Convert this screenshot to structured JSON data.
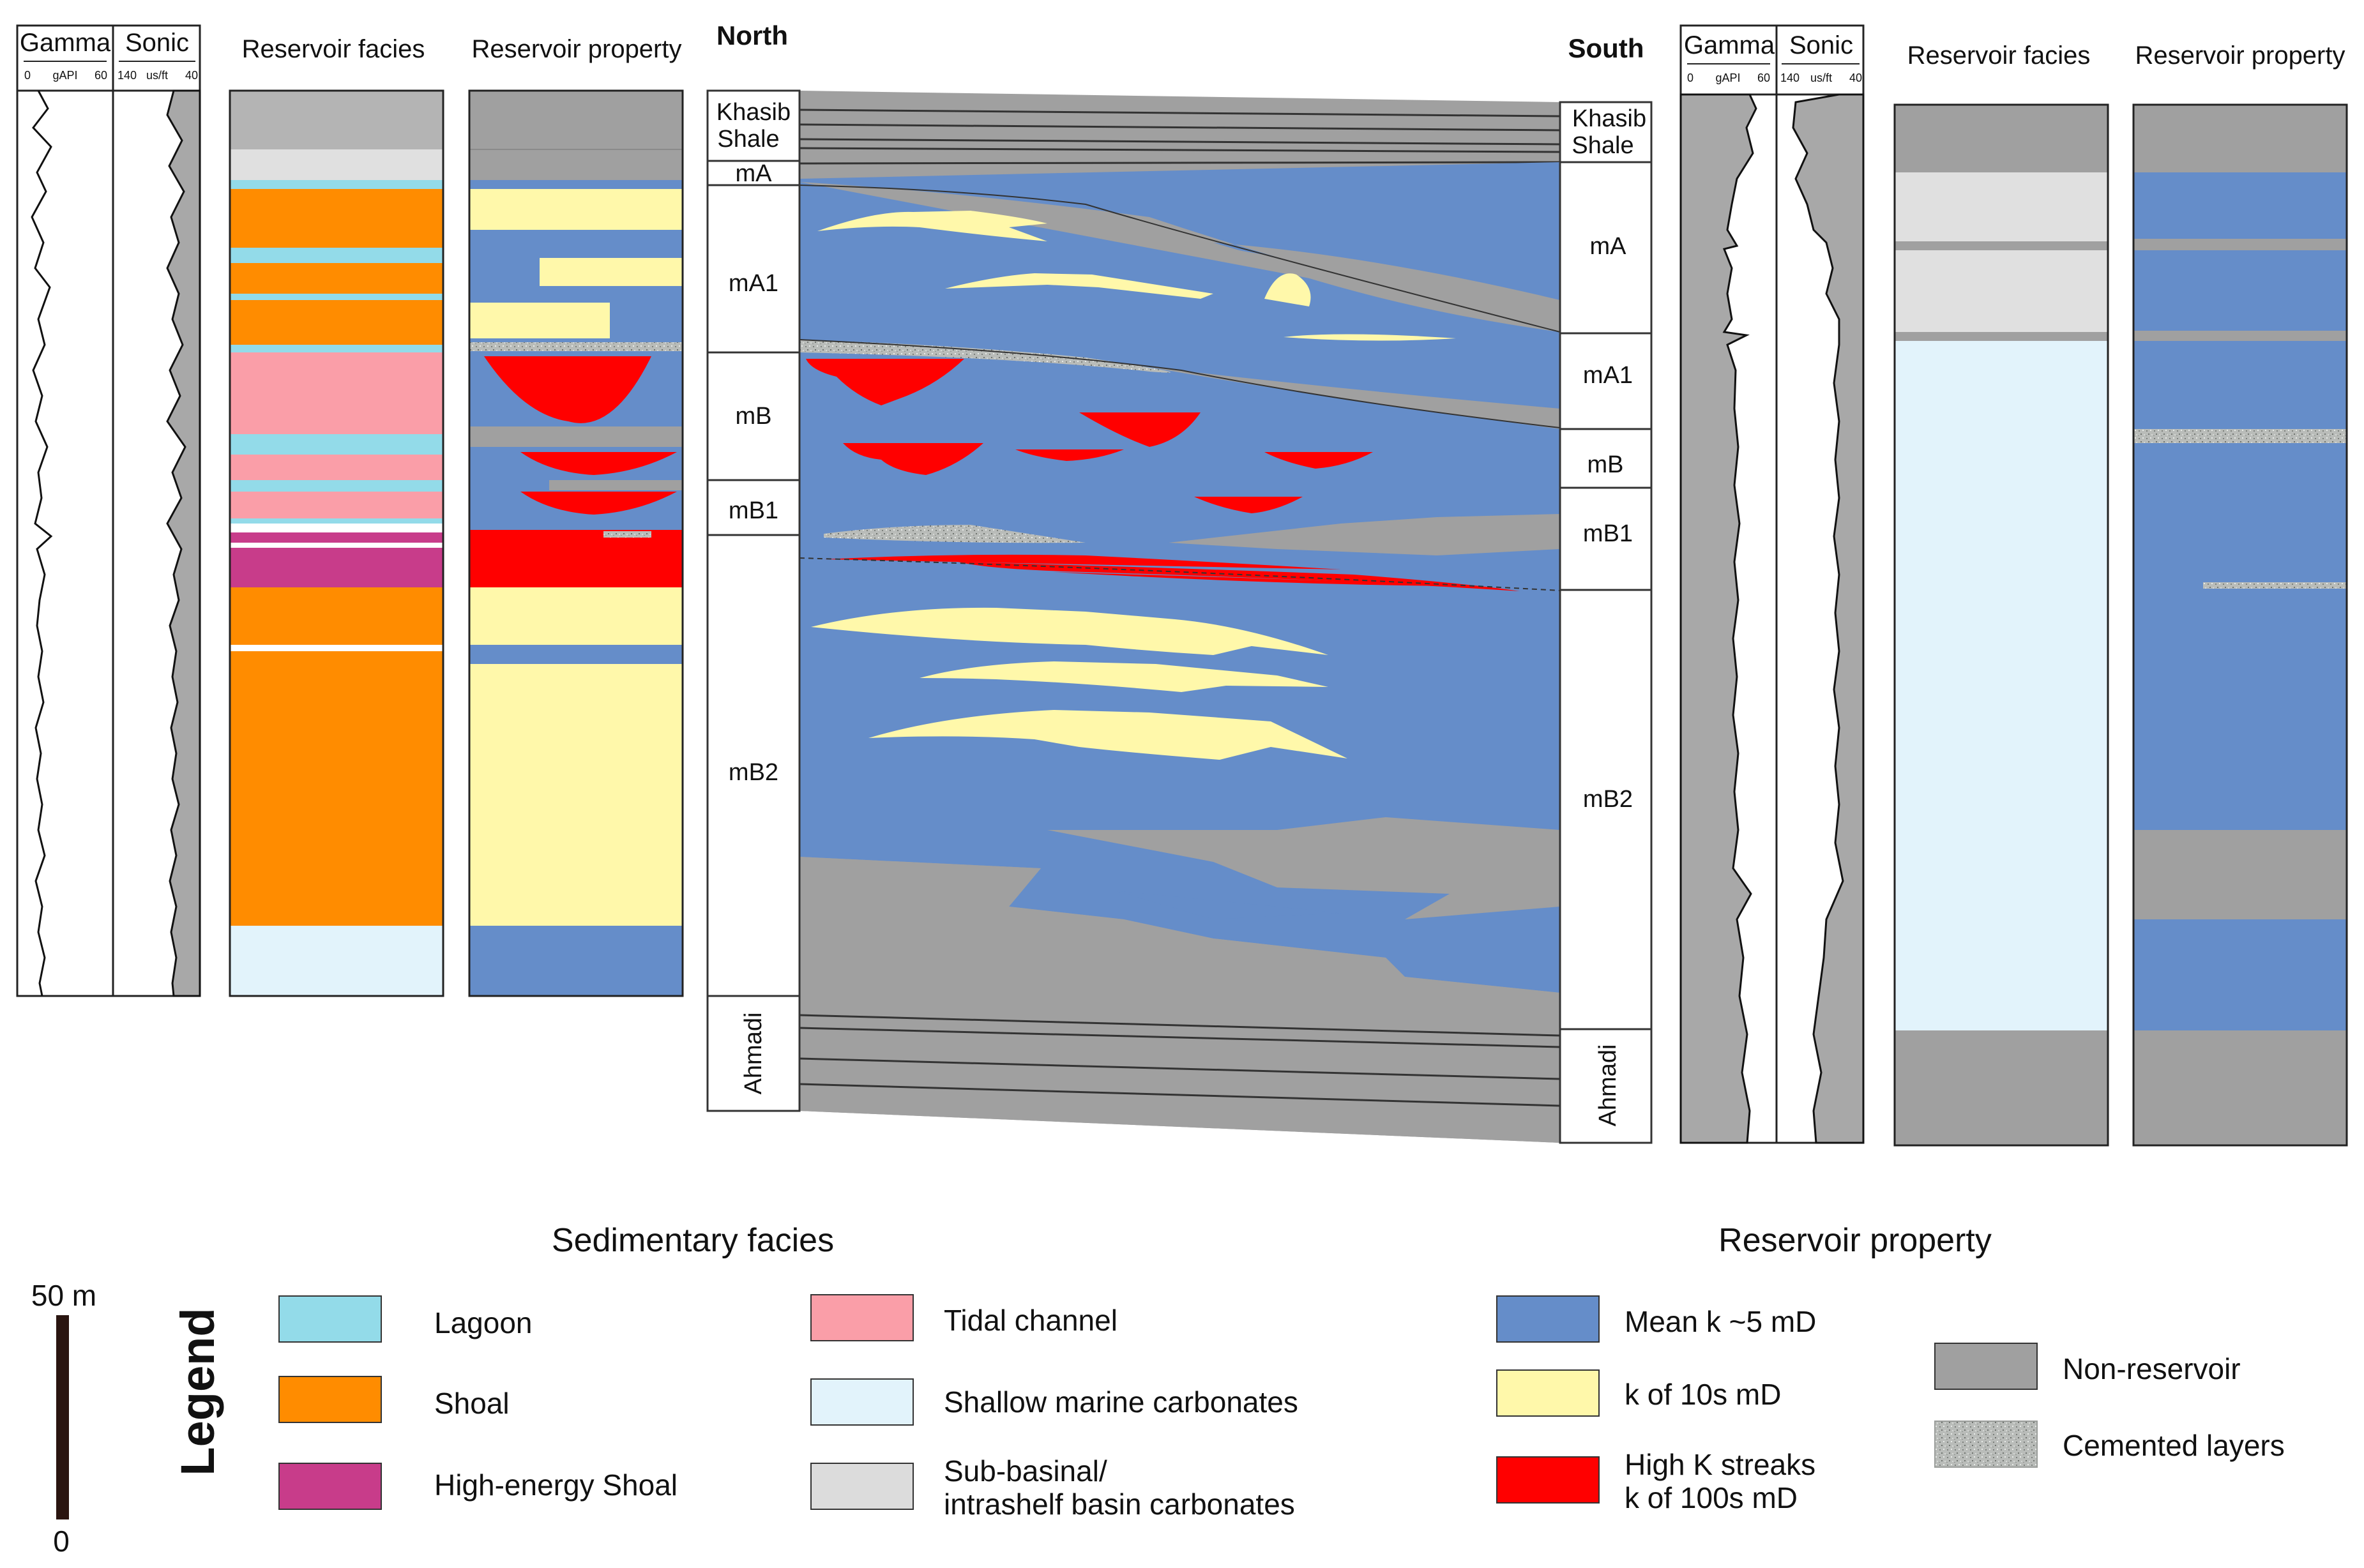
{
  "logs": {
    "left": {
      "gamma_label": "Gamma",
      "gamma_scale": [
        "0",
        "gAPI",
        "60"
      ],
      "sonic_label": "Sonic",
      "sonic_scale": [
        "140",
        "us/ft",
        "40"
      ]
    },
    "right": {
      "gamma_label": "Gamma",
      "gamma_scale": [
        "0",
        "gAPI",
        "60"
      ],
      "sonic_label": "Sonic",
      "sonic_scale": [
        "140",
        "us/ft",
        "40"
      ]
    }
  },
  "columns": {
    "left_facies_title": "Reservoir facies",
    "left_property_title": "Reservoir property",
    "right_facies_title": "Reservoir facies",
    "right_property_title": "Reservoir property"
  },
  "section": {
    "north_label": "North",
    "south_label": "South",
    "north_zones": [
      "Khasib",
      "Shale",
      "mA",
      "mA1",
      "mB",
      "mB1",
      "mB2",
      "Ahmadi"
    ],
    "south_zones": [
      "Khasib",
      "Shale",
      "mA",
      "mA1",
      "mB",
      "mB1",
      "mB2",
      "Ahmadi"
    ]
  },
  "legend": {
    "vertical_label": "Legend",
    "scale_top": "50 m",
    "scale_bottom": "0",
    "facies_title": "Sedimentary facies",
    "property_title": "Reservoir property",
    "facies_items": [
      {
        "label": "Lagoon",
        "color": "#93dbe9"
      },
      {
        "label": "Shoal",
        "color": "#ff8c00"
      },
      {
        "label": "High-energy Shoal",
        "color": "#c83c8a"
      },
      {
        "label": "Tidal channel",
        "color": "#fa9ea8"
      },
      {
        "label": "Shallow marine carbonates",
        "color": "#e2f3fb"
      },
      {
        "label": "Sub-basinal/",
        "label2": "intrashelf basin carbonates",
        "color": "#dcdcdc"
      }
    ],
    "property_items": [
      {
        "label": "Mean k ~5 mD",
        "color": "#658dc9"
      },
      {
        "label": "k of 10s mD",
        "color": "#fff8aa"
      },
      {
        "label": "High K streaks",
        "label2": "k of 100s mD",
        "color": "#ff0000"
      },
      {
        "label": "Non-reservoir",
        "color": "#a0a0a0"
      },
      {
        "label": "Cemented layers",
        "color": "#b8bbb8"
      }
    ]
  }
}
